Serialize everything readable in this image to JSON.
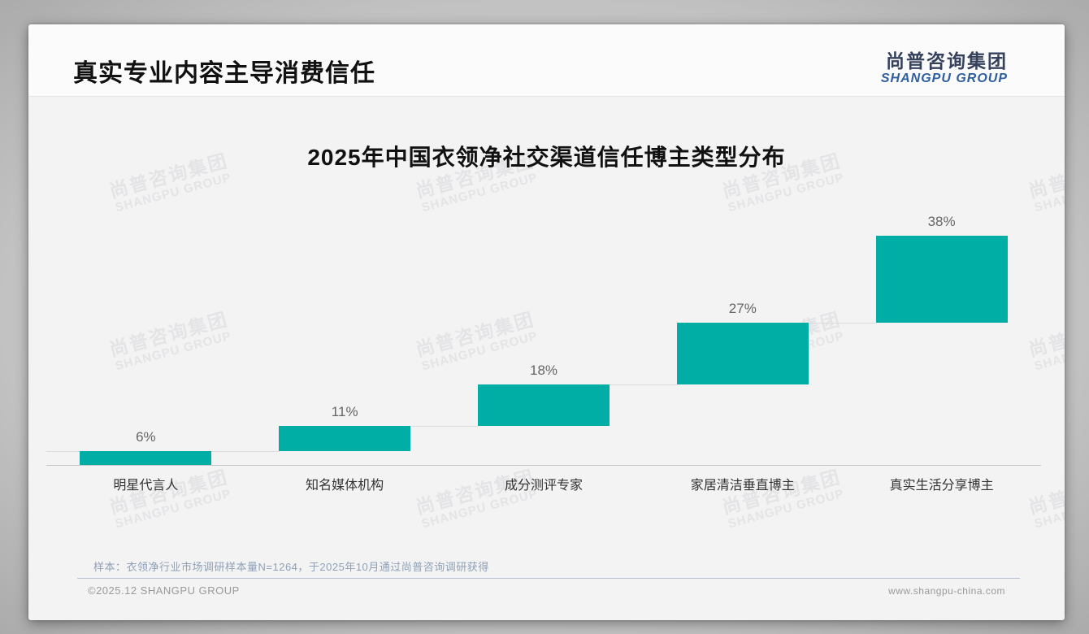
{
  "page": {
    "title": "真实专业内容主导消费信任",
    "logo": {
      "cn": "尚普咨询集团",
      "en": "SHANGPU GROUP"
    },
    "watermark": {
      "line1": "尚普咨询集团",
      "line2": "SHANGPU GROUP"
    },
    "note": "样本：衣领净行业市场调研样本量N=1264，于2025年10月通过尚普咨询调研获得",
    "footer": {
      "left": "©2025.12 SHANGPU GROUP",
      "right": "www.shangpu-china.com"
    }
  },
  "chart_data": {
    "type": "bar",
    "subtype": "waterfall-step",
    "title": "2025年中国衣领净社交渠道信任博主类型分布",
    "categories": [
      "明星代言人",
      "知名媒体机构",
      "成分测评专家",
      "家居清洁垂直博主",
      "真实生活分享博主"
    ],
    "values": [
      6,
      11,
      18,
      27,
      38
    ],
    "labels": [
      "6%",
      "11%",
      "18%",
      "27%",
      "38%"
    ],
    "cumulative_start": [
      0,
      6,
      17,
      35,
      62
    ],
    "unit": "%",
    "ylim": [
      0,
      100
    ],
    "bar_color": "#00AEA6",
    "connector_color": "#dcdcdc",
    "grid": false,
    "legend": false
  }
}
